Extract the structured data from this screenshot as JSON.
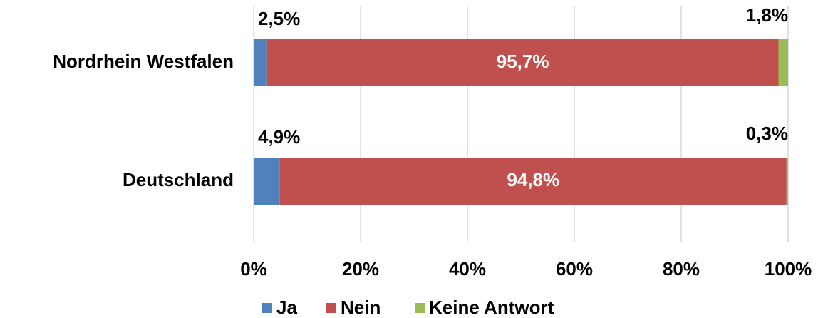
{
  "chart_data": {
    "type": "bar",
    "orientation": "horizontal",
    "stacked": true,
    "categories": [
      "Nordrhein Westfalen",
      "Deutschland"
    ],
    "series": [
      {
        "name": "Ja",
        "color": "#4f81bd",
        "values": [
          2.5,
          4.9
        ],
        "value_labels": [
          "2,5%",
          "4,9%"
        ]
      },
      {
        "name": "Nein",
        "color": "#c0504d",
        "values": [
          95.7,
          94.8
        ],
        "value_labels": [
          "95,7%",
          "94,8%"
        ]
      },
      {
        "name": "Keine Antwort",
        "color": "#9bbb59",
        "values": [
          1.8,
          0.3
        ],
        "value_labels": [
          "1,8%",
          "0,3%"
        ]
      }
    ],
    "xlim": [
      0,
      100
    ],
    "xticks": [
      {
        "value": 0,
        "label": "0%"
      },
      {
        "value": 20,
        "label": "20%"
      },
      {
        "value": 40,
        "label": "40%"
      },
      {
        "value": 60,
        "label": "60%"
      },
      {
        "value": 80,
        "label": "80%"
      },
      {
        "value": 100,
        "label": "100%"
      }
    ],
    "grid": true,
    "legend": "bottom"
  }
}
